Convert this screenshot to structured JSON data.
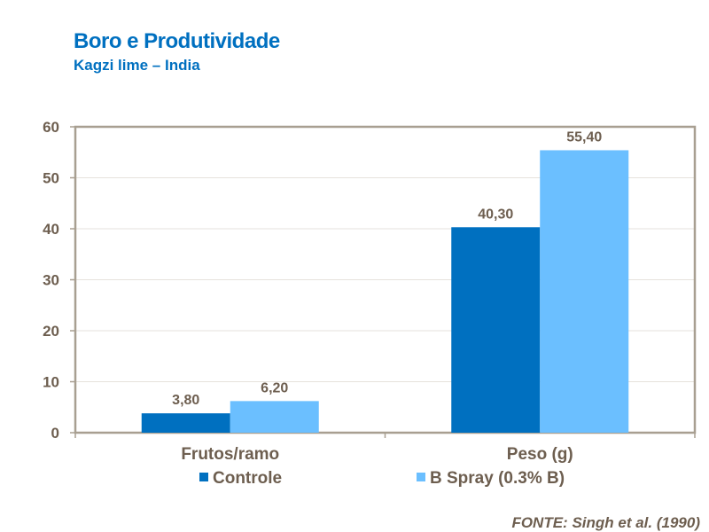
{
  "header": {
    "title": "Boro e Produtividade",
    "subtitle": "Kagzi lime – India"
  },
  "source": "FONTE: Singh et al. (1990)",
  "chart_data": {
    "type": "bar",
    "categories": [
      "Frutos/ramo",
      "Peso (g)"
    ],
    "series": [
      {
        "name": "Controle",
        "values": [
          3.8,
          40.3
        ],
        "labels": [
          "3,80",
          "40,30"
        ],
        "color": "#0070c0"
      },
      {
        "name": "B Spray (0.3% B)",
        "values": [
          6.2,
          55.4
        ],
        "labels": [
          "6,20",
          "55,40"
        ],
        "color": "#6bbfff"
      }
    ],
    "ylim": [
      0,
      60
    ],
    "yticks": [
      "0",
      "10",
      "20",
      "30",
      "40",
      "50",
      "60"
    ],
    "grid": true,
    "legend": "bottom",
    "frame_color": "#a89f91",
    "text_color": "#6d5e4f"
  }
}
